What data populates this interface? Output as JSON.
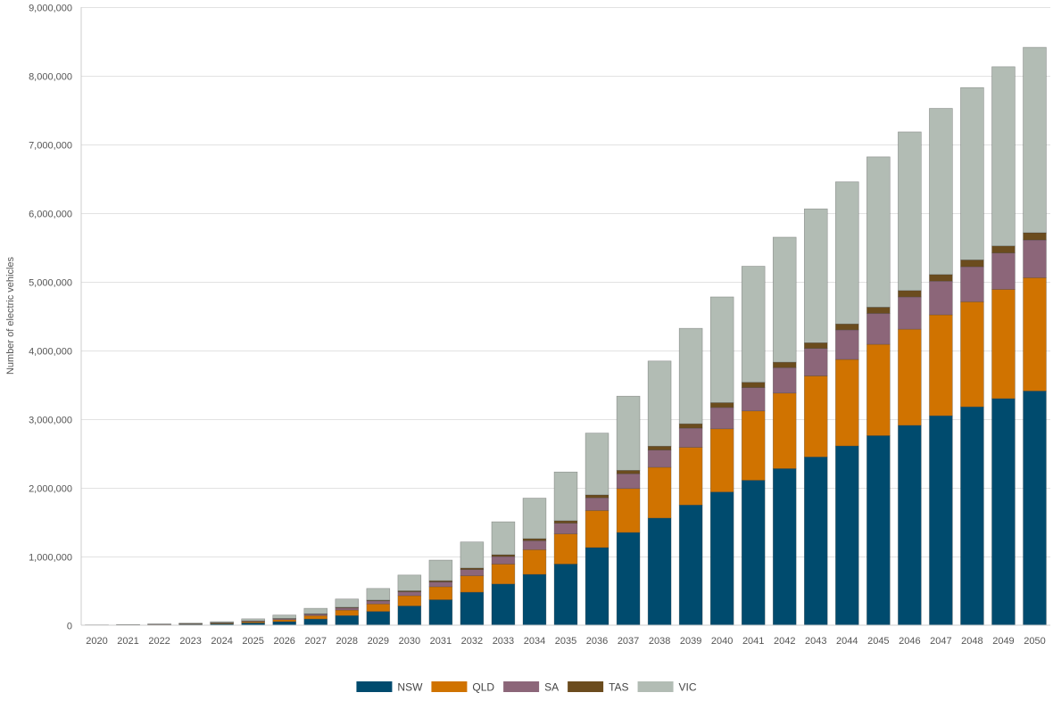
{
  "chart_data": {
    "type": "bar",
    "stacked": true,
    "ylabel": "Number of electric vehicles",
    "xlabel": "",
    "ylim": [
      0,
      9000000
    ],
    "y_ticks": [
      0,
      1000000,
      2000000,
      3000000,
      4000000,
      5000000,
      6000000,
      7000000,
      8000000,
      9000000
    ],
    "y_tick_labels": [
      "0",
      "1,000,000",
      "2,000,000",
      "3,000,000",
      "4,000,000",
      "5,000,000",
      "6,000,000",
      "7,000,000",
      "8,000,000",
      "9,000,000"
    ],
    "grid": true,
    "legend_position": "bottom-center",
    "categories": [
      "2020",
      "2021",
      "2022",
      "2023",
      "2024",
      "2025",
      "2026",
      "2027",
      "2028",
      "2029",
      "2030",
      "2031",
      "2032",
      "2033",
      "2034",
      "2035",
      "2036",
      "2037",
      "2038",
      "2039",
      "2040",
      "2041",
      "2042",
      "2043",
      "2044",
      "2045",
      "2046",
      "2047",
      "2048",
      "2049",
      "2050"
    ],
    "series": [
      {
        "name": "NSW",
        "color": "#004b6e",
        "values": [
          2000,
          4000,
          7000,
          12000,
          20000,
          33000,
          52000,
          90000,
          140000,
          200000,
          280000,
          370000,
          480000,
          600000,
          740000,
          890000,
          1130000,
          1350000,
          1560000,
          1750000,
          1940000,
          2110000,
          2280000,
          2450000,
          2610000,
          2760000,
          2910000,
          3050000,
          3180000,
          3300000,
          3410000
        ]
      },
      {
        "name": "QLD",
        "color": "#d07300",
        "values": [
          1000,
          2000,
          4000,
          6000,
          11000,
          18000,
          28000,
          50000,
          80000,
          110000,
          150000,
          190000,
          240000,
          290000,
          360000,
          440000,
          540000,
          640000,
          740000,
          840000,
          920000,
          1010000,
          1100000,
          1180000,
          1260000,
          1330000,
          1400000,
          1470000,
          1530000,
          1590000,
          1650000
        ]
      },
      {
        "name": "SA",
        "color": "#8c6679",
        "values": [
          500,
          1000,
          2000,
          3000,
          5000,
          9000,
          14000,
          20000,
          32000,
          44000,
          56000,
          70000,
          90000,
          110000,
          130000,
          155000,
          185000,
          215000,
          250000,
          280000,
          310000,
          340000,
          370000,
          400000,
          430000,
          450000,
          470000,
          490000,
          510000,
          530000,
          550000
        ]
      },
      {
        "name": "TAS",
        "color": "#6b4c1e",
        "values": [
          100,
          300,
          500,
          1000,
          2000,
          3000,
          4000,
          6000,
          9000,
          11000,
          14000,
          18000,
          22000,
          26000,
          30000,
          36000,
          42000,
          50000,
          57000,
          63000,
          70000,
          77000,
          80000,
          83000,
          87000,
          90000,
          93000,
          96000,
          99000,
          102000,
          105000
        ]
      },
      {
        "name": "VIC",
        "color": "#b2bcb4",
        "values": [
          1500,
          3000,
          6000,
          9000,
          14000,
          30000,
          50000,
          80000,
          120000,
          170000,
          230000,
          300000,
          380000,
          480000,
          590000,
          710000,
          900000,
          1080000,
          1240000,
          1390000,
          1540000,
          1690000,
          1820000,
          1950000,
          2070000,
          2190000,
          2310000,
          2420000,
          2510000,
          2610000,
          2700000
        ]
      }
    ]
  }
}
